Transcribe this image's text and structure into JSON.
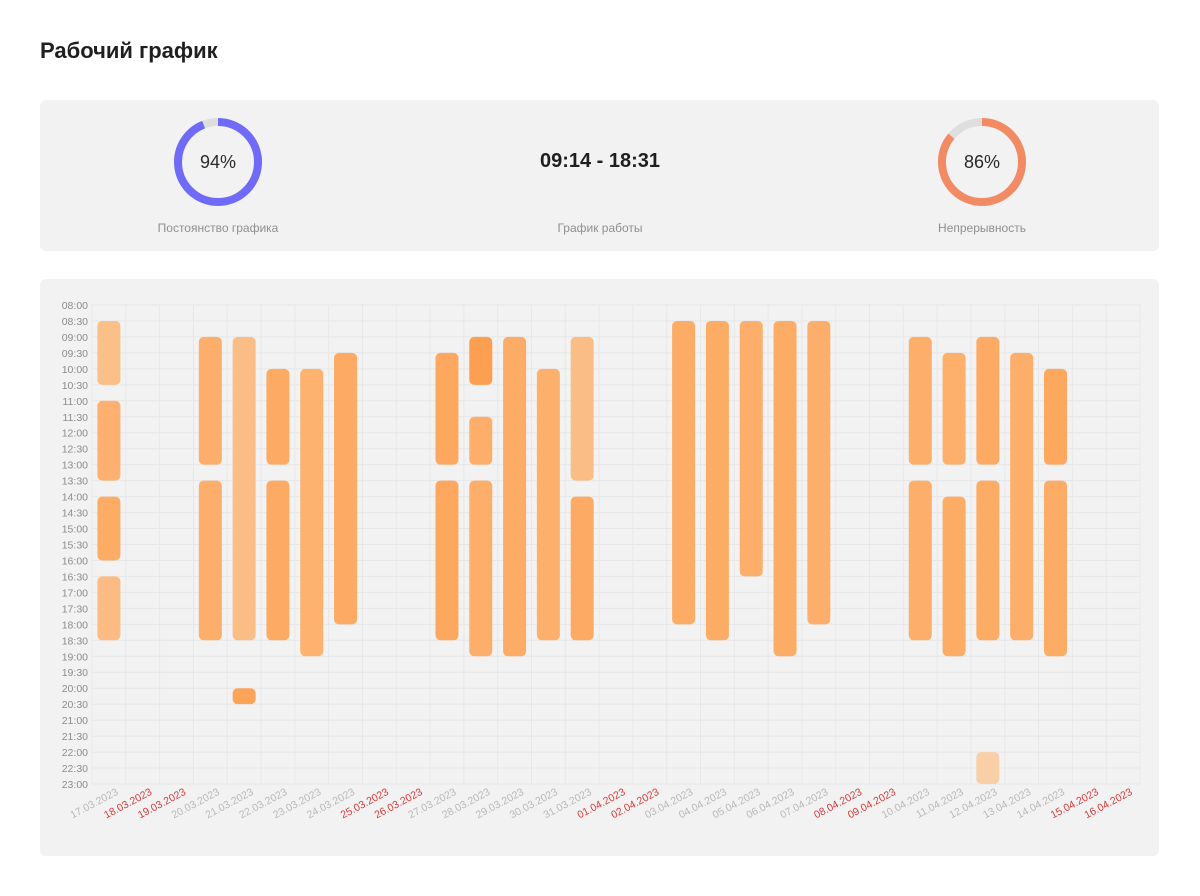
{
  "page": {
    "title": "Рабочий график"
  },
  "stats": {
    "consistency": {
      "percent_label": "94%",
      "value": 94,
      "label": "Постоянство графика",
      "color": "#6f6af8"
    },
    "schedule": {
      "value": "09:14 - 18:31",
      "label": "График работы"
    },
    "continuity": {
      "percent_label": "86%",
      "value": 86,
      "label": "Непрерывность",
      "color": "#f28a63"
    }
  },
  "chart_data": {
    "type": "bar",
    "orientation": "vertical-range",
    "y_axis": {
      "ticks": [
        "08:00",
        "08:30",
        "09:00",
        "09:30",
        "10:00",
        "10:30",
        "11:00",
        "11:30",
        "12:00",
        "12:30",
        "13:00",
        "13:30",
        "14:00",
        "14:30",
        "15:00",
        "15:30",
        "16:00",
        "16:30",
        "17:00",
        "17:30",
        "18:00",
        "18:30",
        "19:00",
        "19:30",
        "20:00",
        "20:30",
        "21:00",
        "21:30",
        "22:00",
        "22:30",
        "23:00"
      ],
      "range": [
        "08:00",
        "23:00"
      ],
      "direction": "downward"
    },
    "grid": true,
    "weekend_color": "#d93b3b",
    "weekday_color": "#b8b8b8",
    "dates": [
      {
        "label": "17.03.2023",
        "weekend": false
      },
      {
        "label": "18.03.2023",
        "weekend": true
      },
      {
        "label": "19.03.2023",
        "weekend": true
      },
      {
        "label": "20.03.2023",
        "weekend": false
      },
      {
        "label": "21.03.2023",
        "weekend": false
      },
      {
        "label": "22.03.2023",
        "weekend": false
      },
      {
        "label": "23.03.2023",
        "weekend": false
      },
      {
        "label": "24.03.2023",
        "weekend": false
      },
      {
        "label": "25.03.2023",
        "weekend": true
      },
      {
        "label": "26.03.2023",
        "weekend": true
      },
      {
        "label": "27.03.2023",
        "weekend": false
      },
      {
        "label": "28.03.2023",
        "weekend": false
      },
      {
        "label": "29.03.2023",
        "weekend": false
      },
      {
        "label": "30.03.2023",
        "weekend": false
      },
      {
        "label": "31.03.2023",
        "weekend": false
      },
      {
        "label": "01.04.2023",
        "weekend": true
      },
      {
        "label": "02.04.2023",
        "weekend": true
      },
      {
        "label": "03.04.2023",
        "weekend": false
      },
      {
        "label": "04.04.2023",
        "weekend": false
      },
      {
        "label": "05.04.2023",
        "weekend": false
      },
      {
        "label": "06.04.2023",
        "weekend": false
      },
      {
        "label": "07.04.2023",
        "weekend": false
      },
      {
        "label": "08.04.2023",
        "weekend": true
      },
      {
        "label": "09.04.2023",
        "weekend": true
      },
      {
        "label": "10.04.2023",
        "weekend": false
      },
      {
        "label": "11.04.2023",
        "weekend": false
      },
      {
        "label": "12.04.2023",
        "weekend": false
      },
      {
        "label": "13.04.2023",
        "weekend": false
      },
      {
        "label": "14.04.2023",
        "weekend": false
      },
      {
        "label": "15.04.2023",
        "weekend": true
      },
      {
        "label": "16.04.2023",
        "weekend": true
      }
    ],
    "sessions": [
      {
        "date": "17.03.2023",
        "start": "08:30",
        "end": "10:30",
        "color": "#fbbf88"
      },
      {
        "date": "17.03.2023",
        "start": "11:00",
        "end": "13:30",
        "color": "#fdb06f"
      },
      {
        "date": "17.03.2023",
        "start": "14:00",
        "end": "16:00",
        "color": "#fdac66"
      },
      {
        "date": "17.03.2023",
        "start": "16:30",
        "end": "18:30",
        "color": "#fbbb82"
      },
      {
        "date": "20.03.2023",
        "start": "09:00",
        "end": "13:00",
        "color": "#fdae6a"
      },
      {
        "date": "20.03.2023",
        "start": "13:30",
        "end": "18:30",
        "color": "#fdae6a"
      },
      {
        "date": "21.03.2023",
        "start": "09:00",
        "end": "18:30",
        "color": "#fbbd86"
      },
      {
        "date": "21.03.2023",
        "start": "20:00",
        "end": "20:30",
        "color": "#fda35a"
      },
      {
        "date": "22.03.2023",
        "start": "10:00",
        "end": "13:00",
        "color": "#fdaa64"
      },
      {
        "date": "22.03.2023",
        "start": "13:30",
        "end": "18:30",
        "color": "#fdaa64"
      },
      {
        "date": "23.03.2023",
        "start": "10:00",
        "end": "19:00",
        "color": "#fdb36f"
      },
      {
        "date": "24.03.2023",
        "start": "09:30",
        "end": "18:00",
        "color": "#fdaa64"
      },
      {
        "date": "27.03.2023",
        "start": "09:30",
        "end": "13:00",
        "color": "#fda85e"
      },
      {
        "date": "27.03.2023",
        "start": "13:30",
        "end": "18:30",
        "color": "#fda85e"
      },
      {
        "date": "28.03.2023",
        "start": "09:00",
        "end": "10:30",
        "color": "#fd9f50"
      },
      {
        "date": "28.03.2023",
        "start": "11:30",
        "end": "13:00",
        "color": "#fdae6a"
      },
      {
        "date": "28.03.2023",
        "start": "13:30",
        "end": "19:00",
        "color": "#fdae6a"
      },
      {
        "date": "29.03.2023",
        "start": "09:00",
        "end": "19:00",
        "color": "#fdac66"
      },
      {
        "date": "30.03.2023",
        "start": "10:00",
        "end": "18:30",
        "color": "#fdb06c"
      },
      {
        "date": "31.03.2023",
        "start": "09:00",
        "end": "13:30",
        "color": "#fbbd86"
      },
      {
        "date": "31.03.2023",
        "start": "14:00",
        "end": "18:30",
        "color": "#fdaa64"
      },
      {
        "date": "03.04.2023",
        "start": "08:30",
        "end": "18:00",
        "color": "#fdac66"
      },
      {
        "date": "04.04.2023",
        "start": "08:30",
        "end": "18:30",
        "color": "#fdac66"
      },
      {
        "date": "05.04.2023",
        "start": "08:30",
        "end": "16:30",
        "color": "#fdae6a"
      },
      {
        "date": "06.04.2023",
        "start": "08:30",
        "end": "19:00",
        "color": "#fdac66"
      },
      {
        "date": "07.04.2023",
        "start": "08:30",
        "end": "18:00",
        "color": "#fdae6a"
      },
      {
        "date": "10.04.2023",
        "start": "09:00",
        "end": "13:00",
        "color": "#fdae6a"
      },
      {
        "date": "10.04.2023",
        "start": "13:30",
        "end": "18:30",
        "color": "#fdae6a"
      },
      {
        "date": "11.04.2023",
        "start": "09:30",
        "end": "13:00",
        "color": "#fdb06c"
      },
      {
        "date": "11.04.2023",
        "start": "14:00",
        "end": "19:00",
        "color": "#fdac66"
      },
      {
        "date": "12.04.2023",
        "start": "09:00",
        "end": "13:00",
        "color": "#fdaa64"
      },
      {
        "date": "12.04.2023",
        "start": "13:30",
        "end": "18:30",
        "color": "#fdac66"
      },
      {
        "date": "12.04.2023",
        "start": "22:00",
        "end": "23:00",
        "color": "#f8cfa6"
      },
      {
        "date": "13.04.2023",
        "start": "09:30",
        "end": "18:30",
        "color": "#fdae6a"
      },
      {
        "date": "14.04.2023",
        "start": "10:00",
        "end": "13:00",
        "color": "#fda85e"
      },
      {
        "date": "14.04.2023",
        "start": "13:30",
        "end": "19:00",
        "color": "#fdac66"
      }
    ]
  }
}
